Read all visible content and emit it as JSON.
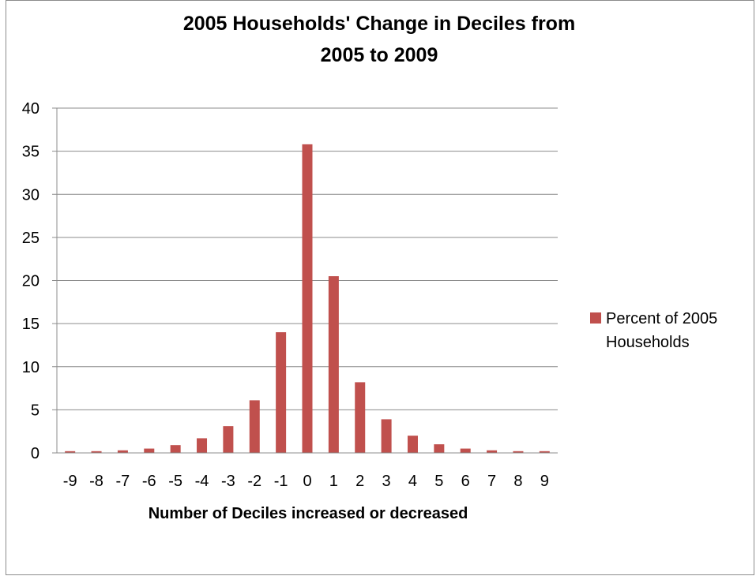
{
  "chart_data": {
    "type": "bar",
    "title_lines": [
      "2005 Households' Change in Deciles from",
      "2005 to 2009"
    ],
    "xlabel": "Number of Deciles increased or decreased",
    "ylabel": "",
    "ylim": [
      0,
      40
    ],
    "yticks": [
      0,
      5,
      10,
      15,
      20,
      25,
      30,
      35,
      40
    ],
    "grid": true,
    "legend_position": "right",
    "categories": [
      "-9",
      "-8",
      "-7",
      "-6",
      "-5",
      "-4",
      "-3",
      "-2",
      "-1",
      "0",
      "1",
      "2",
      "3",
      "4",
      "5",
      "6",
      "7",
      "8",
      "9"
    ],
    "series": [
      {
        "name_lines": [
          "Percent of 2005",
          "Households"
        ],
        "color": "#c0504d",
        "values": [
          0.2,
          0.2,
          0.3,
          0.5,
          0.9,
          1.7,
          3.1,
          6.1,
          14.0,
          35.8,
          20.5,
          8.2,
          3.9,
          2.0,
          1.0,
          0.5,
          0.3,
          0.2,
          0.2
        ]
      }
    ]
  }
}
